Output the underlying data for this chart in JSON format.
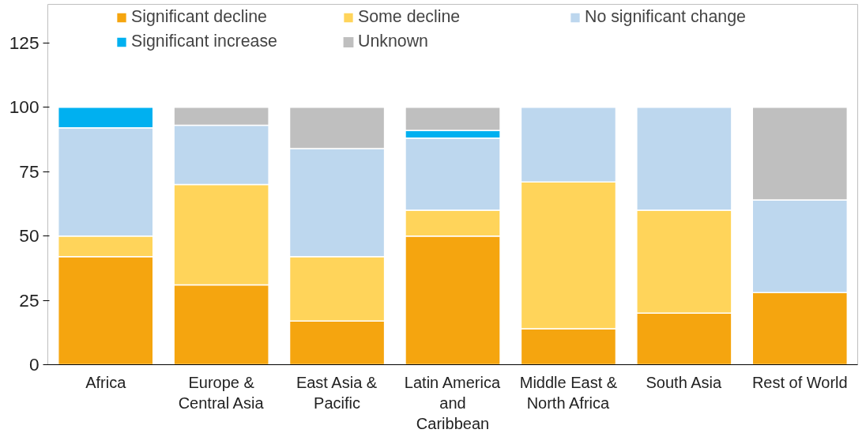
{
  "chart_data": {
    "type": "bar",
    "stacked": true,
    "categories": [
      "Africa",
      "Europe &\nCentral Asia",
      "East Asia &\nPacific",
      "Latin America\nand\nCaribbean",
      "Middle East &\nNorth Africa",
      "South Asia",
      "Rest of World"
    ],
    "series": [
      {
        "name": "Significant decline",
        "color": "#f5a50f",
        "values": [
          42,
          31,
          17,
          50,
          14,
          20,
          28
        ]
      },
      {
        "name": "Some decline",
        "color": "#ffd45a",
        "values": [
          8,
          39,
          25,
          10,
          57,
          40,
          0
        ]
      },
      {
        "name": "No significant change",
        "color": "#bdd7ee",
        "values": [
          42,
          23,
          42,
          28,
          29,
          40,
          36
        ]
      },
      {
        "name": "Significant increase",
        "color": "#00b0f0",
        "values": [
          8,
          0,
          0,
          3,
          0,
          0,
          0
        ]
      },
      {
        "name": "Unknown",
        "color": "#bfbfbf",
        "values": [
          0,
          7,
          16,
          9,
          0,
          0,
          36
        ]
      }
    ],
    "ylim": [
      0,
      140
    ],
    "yticks": [
      0,
      25,
      50,
      75,
      100,
      125
    ],
    "grid": false,
    "legend": "top"
  }
}
